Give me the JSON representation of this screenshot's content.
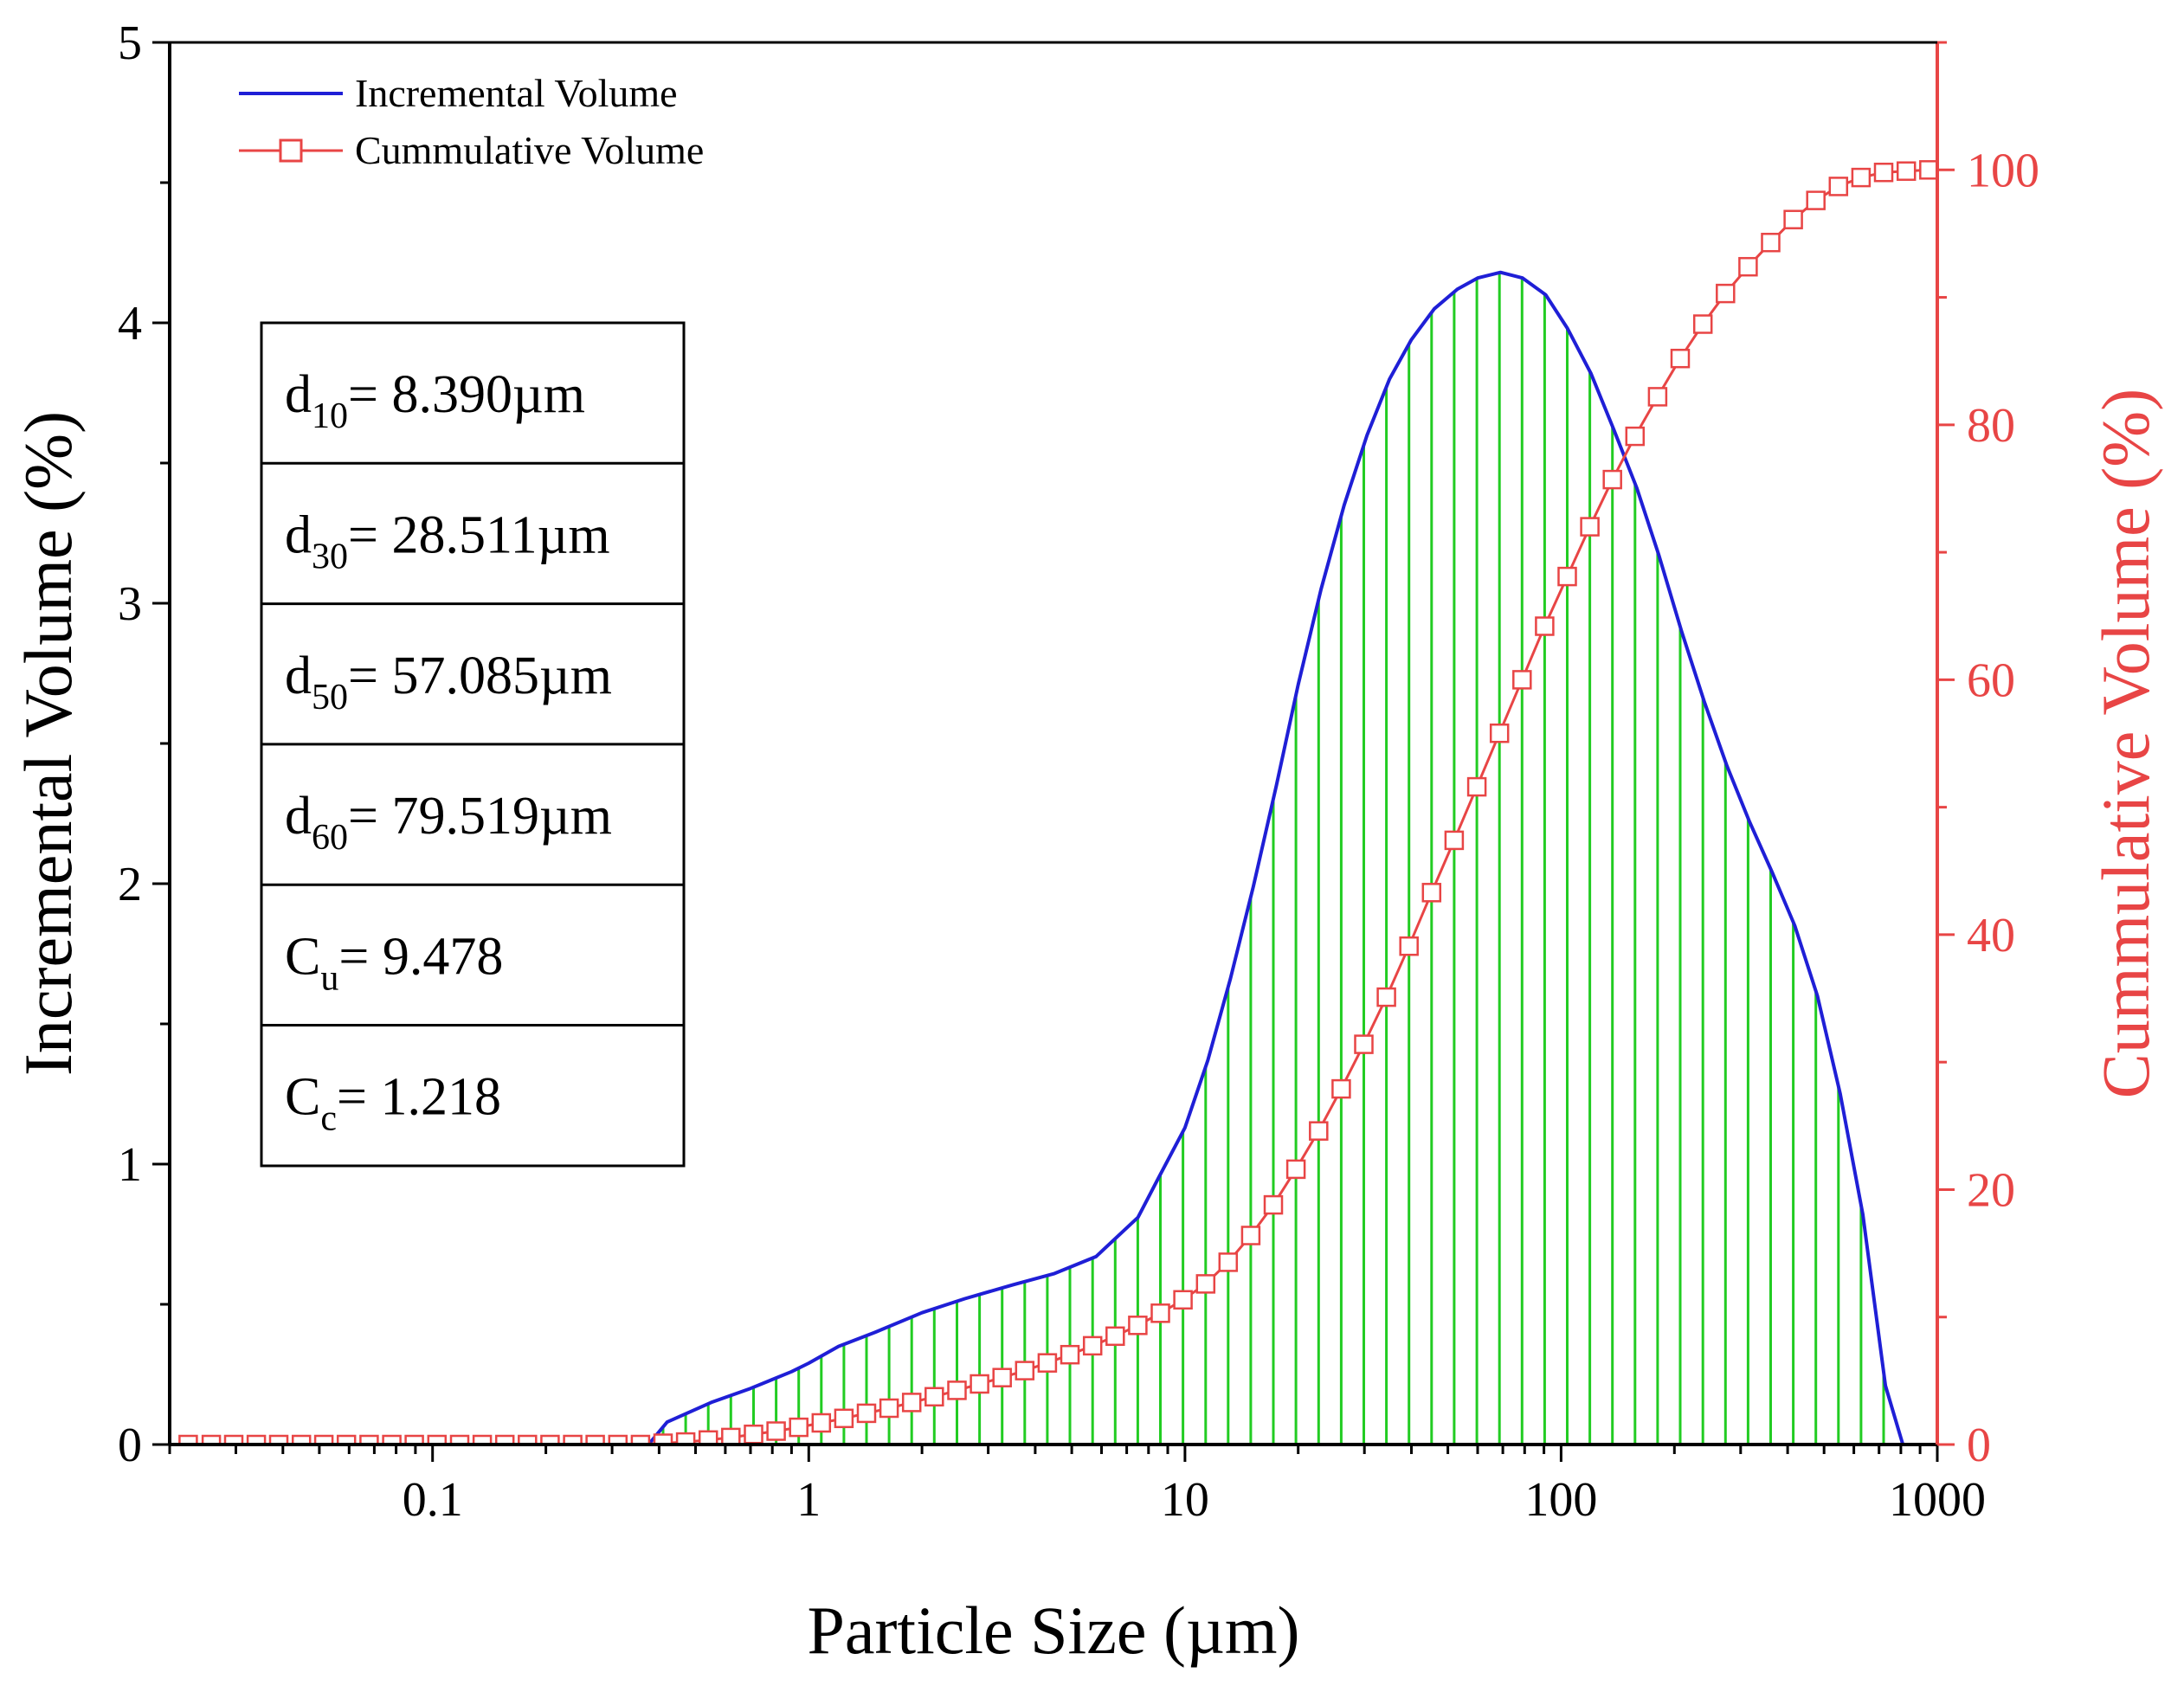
{
  "chart_data": {
    "type": "line",
    "title": "",
    "xlabel": "Particle Size (µm)",
    "ylabel": "Incremental Volume (%)",
    "y2label": "Cummulative Volume (%)",
    "xscale": "log",
    "xlim": [
      0.02,
      1000
    ],
    "ylim": [
      0,
      5
    ],
    "y2lim": [
      0,
      110
    ],
    "x_ticks": [
      0.1,
      1,
      10,
      100,
      1000
    ],
    "x_tick_labels": [
      "0.1",
      "1",
      "10",
      "100",
      "1000"
    ],
    "y_ticks": [
      0,
      1,
      2,
      3,
      4,
      5
    ],
    "y_tick_labels": [
      "0",
      "1",
      "2",
      "3",
      "4",
      "5"
    ],
    "y2_ticks": [
      0,
      20,
      40,
      60,
      80,
      100
    ],
    "y2_tick_labels": [
      "0",
      "20",
      "40",
      "60",
      "80",
      "100"
    ],
    "colors": {
      "incremental": "#1f1fd6",
      "fill_hatch": "#22cc22",
      "cumulative": "#e84545",
      "axis": "#000000",
      "right_axis": "#e84545"
    },
    "legend": {
      "position": "top-left",
      "entries": [
        {
          "label": "Incremental Volume",
          "color": "#1f1fd6",
          "marker": "none"
        },
        {
          "label": "Cummulative Volume",
          "color": "#e84545",
          "marker": "square-open"
        }
      ]
    },
    "series": [
      {
        "name": "Incremental Volume",
        "axis": "left",
        "points": [
          [
            0.375,
            0.0
          ],
          [
            0.42,
            0.08
          ],
          [
            0.55,
            0.15
          ],
          [
            0.7,
            0.2
          ],
          [
            0.9,
            0.26
          ],
          [
            1.0,
            0.29
          ],
          [
            1.2,
            0.35
          ],
          [
            1.5,
            0.4
          ],
          [
            2.0,
            0.47
          ],
          [
            2.6,
            0.52
          ],
          [
            3.5,
            0.57
          ],
          [
            4.5,
            0.61
          ],
          [
            5.8,
            0.67
          ],
          [
            7.5,
            0.81
          ],
          [
            8.5,
            0.95
          ],
          [
            10,
            1.13
          ],
          [
            11.5,
            1.37
          ],
          [
            13.2,
            1.66
          ],
          [
            15.2,
            1.99
          ],
          [
            17.5,
            2.35
          ],
          [
            20,
            2.71
          ],
          [
            23,
            3.05
          ],
          [
            26.5,
            3.35
          ],
          [
            30.5,
            3.6
          ],
          [
            35,
            3.8
          ],
          [
            40,
            3.94
          ],
          [
            46,
            4.05
          ],
          [
            53,
            4.12
          ],
          [
            60,
            4.16
          ],
          [
            69,
            4.18
          ],
          [
            79,
            4.16
          ],
          [
            91,
            4.1
          ],
          [
            104,
            3.98
          ],
          [
            120,
            3.82
          ],
          [
            138,
            3.62
          ],
          [
            159,
            3.41
          ],
          [
            182,
            3.17
          ],
          [
            209,
            2.9
          ],
          [
            240,
            2.65
          ],
          [
            276,
            2.42
          ],
          [
            317,
            2.22
          ],
          [
            364,
            2.04
          ],
          [
            418,
            1.85
          ],
          [
            480,
            1.6
          ],
          [
            552,
            1.25
          ],
          [
            634,
            0.82
          ],
          [
            728,
            0.21
          ],
          [
            810,
            0.0
          ]
        ]
      },
      {
        "name": "Cummulative Volume",
        "axis": "right",
        "points": [
          [
            0.0224,
            0.0
          ],
          [
            0.0258,
            0.0
          ],
          [
            0.0296,
            0.0
          ],
          [
            0.034,
            0.0
          ],
          [
            0.039,
            0.0
          ],
          [
            0.0448,
            0.0
          ],
          [
            0.0514,
            0.0
          ],
          [
            0.059,
            0.0
          ],
          [
            0.0678,
            0.0
          ],
          [
            0.0779,
            0.0
          ],
          [
            0.0894,
            0.0
          ],
          [
            0.1027,
            0.0
          ],
          [
            0.118,
            0.0
          ],
          [
            0.1355,
            0.0
          ],
          [
            0.1556,
            0.0
          ],
          [
            0.1787,
            0.0
          ],
          [
            0.2052,
            0.0
          ],
          [
            0.2357,
            0.0
          ],
          [
            0.2706,
            0.0
          ],
          [
            0.3108,
            0.0
          ],
          [
            0.3569,
            0.0
          ],
          [
            0.4099,
            0.1
          ],
          [
            0.4707,
            0.2
          ],
          [
            0.5406,
            0.35
          ],
          [
            0.6208,
            0.55
          ],
          [
            0.713,
            0.8
          ],
          [
            0.8187,
            1.05
          ],
          [
            0.9402,
            1.35
          ],
          [
            1.08,
            1.7
          ],
          [
            1.24,
            2.05
          ],
          [
            1.424,
            2.45
          ],
          [
            1.635,
            2.85
          ],
          [
            1.878,
            3.3
          ],
          [
            2.156,
            3.75
          ],
          [
            2.477,
            4.25
          ],
          [
            2.844,
            4.75
          ],
          [
            3.266,
            5.25
          ],
          [
            3.751,
            5.8
          ],
          [
            4.308,
            6.4
          ],
          [
            4.947,
            7.05
          ],
          [
            5.681,
            7.75
          ],
          [
            6.524,
            8.5
          ],
          [
            7.492,
            9.35
          ],
          [
            8.604,
            10.3
          ],
          [
            9.88,
            11.35
          ],
          [
            11.35,
            12.6
          ],
          [
            13.03,
            14.3
          ],
          [
            14.96,
            16.4
          ],
          [
            17.18,
            18.8
          ],
          [
            19.73,
            21.6
          ],
          [
            22.66,
            24.6
          ],
          [
            26.02,
            27.9
          ],
          [
            29.88,
            31.4
          ],
          [
            34.32,
            35.1
          ],
          [
            39.41,
            39.1
          ],
          [
            45.26,
            43.3
          ],
          [
            51.97,
            47.4
          ],
          [
            59.69,
            51.6
          ],
          [
            68.55,
            55.8
          ],
          [
            78.72,
            60.0
          ],
          [
            90.4,
            64.2
          ],
          [
            103.8,
            68.1
          ],
          [
            119.2,
            72.0
          ],
          [
            136.9,
            75.7
          ],
          [
            157.2,
            79.1
          ],
          [
            180.5,
            82.2
          ],
          [
            207.3,
            85.2
          ],
          [
            238.1,
            87.9
          ],
          [
            273.4,
            90.3
          ],
          [
            314.0,
            92.4
          ],
          [
            360.6,
            94.3
          ],
          [
            414.1,
            96.1
          ],
          [
            475.5,
            97.6
          ],
          [
            546.1,
            98.7
          ],
          [
            627.1,
            99.4
          ],
          [
            720.1,
            99.8
          ],
          [
            827.0,
            99.9
          ],
          [
            949.7,
            100.0
          ]
        ]
      }
    ],
    "annotation_table": [
      {
        "symbol": "d",
        "sub": "10",
        "text": "= 8.390µm"
      },
      {
        "symbol": "d",
        "sub": "30",
        "text": "= 28.511µm"
      },
      {
        "symbol": "d",
        "sub": "50",
        "text": "= 57.085µm"
      },
      {
        "symbol": "d",
        "sub": "60",
        "text": "= 79.519µm"
      },
      {
        "symbol": "C",
        "sub": "u",
        "text": "= 9.478"
      },
      {
        "symbol": "C",
        "sub": "c",
        "text": "= 1.218"
      }
    ]
  }
}
